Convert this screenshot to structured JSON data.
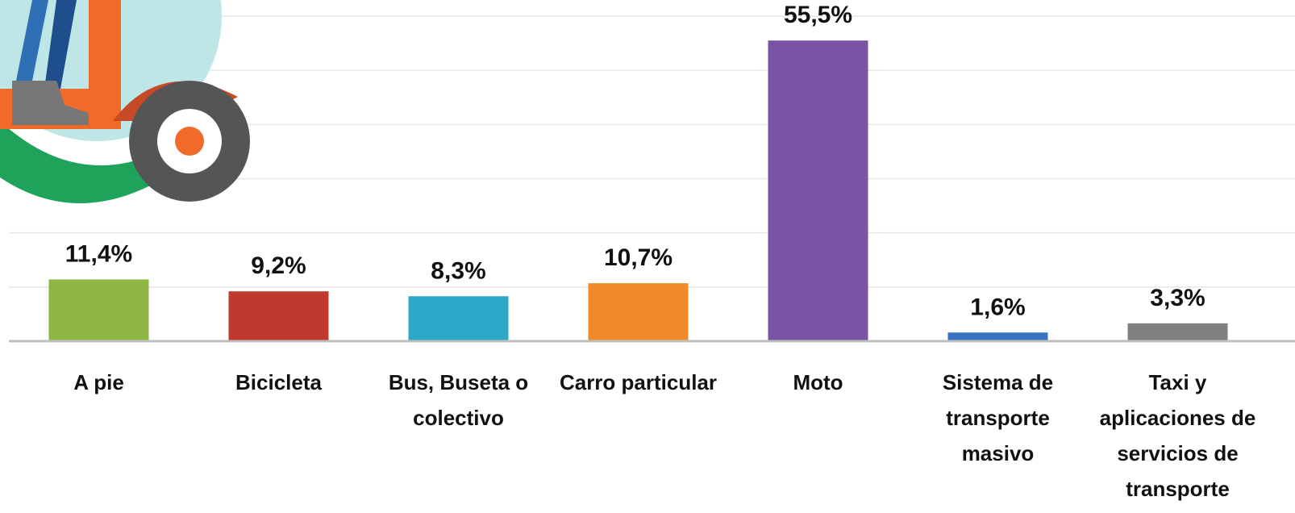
{
  "chart_data": {
    "type": "bar",
    "categories": [
      "A pie",
      "Bicicleta",
      "Bus, Buseta o colectivo",
      "Carro particular",
      "Moto",
      "Sistema de transporte masivo",
      "Taxi y aplicaciones de servicios de transporte"
    ],
    "values": [
      11.4,
      9.2,
      8.3,
      10.7,
      55.5,
      1.6,
      3.3
    ],
    "value_labels": [
      "11,4%",
      "9,2%",
      "8,3%",
      "10,7%",
      "55,5%",
      "1,6%",
      "3,3%"
    ],
    "colors": [
      "#8db644",
      "#c0392f",
      "#2ea8c9",
      "#f0892a",
      "#7a54a4",
      "#3a73c0",
      "#808080"
    ],
    "ylim": [
      0,
      60
    ],
    "yticks": [
      0,
      10,
      20,
      30,
      40,
      50,
      60
    ],
    "grid": true
  }
}
